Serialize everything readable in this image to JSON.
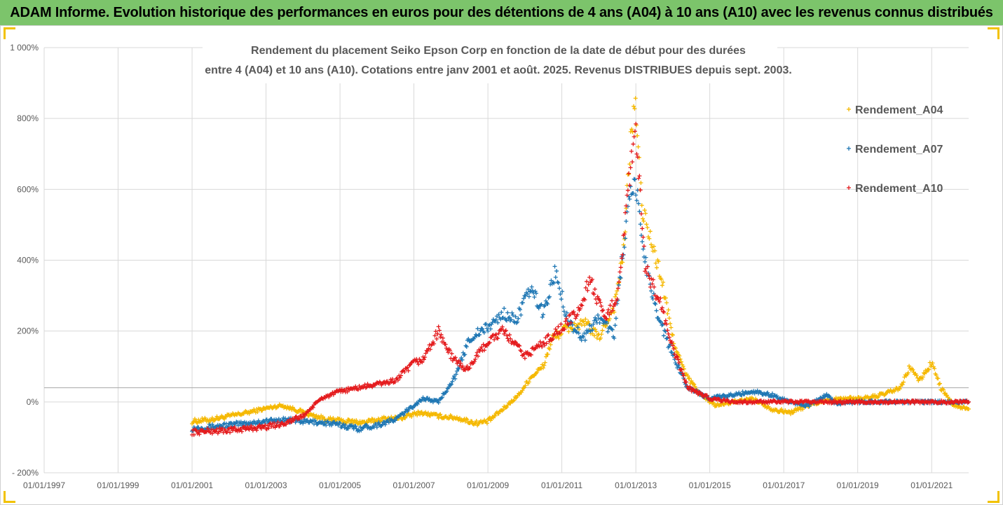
{
  "banner": {
    "title": "ADAM Informe. Evolution historique des performances en euros pour des détentions de 4 ans (A04) à 10 ans (A10) avec les revenus connus distribués"
  },
  "colors": {
    "banner_bg": "#7cc46b",
    "corner_accent": "#f2c200",
    "A04": "#f5b800",
    "A07": "#1f77b4",
    "A10": "#e41a1c"
  },
  "chart_data": {
    "type": "scatter",
    "title_lines": [
      "Rendement du placement Seiko Epson Corp en fonction de la date de début pour des durées",
      "entre 4 (A04) et 10 ans (A10). Cotations entre janv 2001 et août. 2025. Revenus DISTRIBUES depuis sept. 2003."
    ],
    "xlabel": "",
    "ylabel": "",
    "x_tick_labels": [
      "01/01/1997",
      "01/01/1999",
      "01/01/2001",
      "01/01/2003",
      "01/01/2005",
      "01/01/2007",
      "01/01/2009",
      "01/01/2011",
      "01/01/2013",
      "01/01/2015",
      "01/01/2017",
      "01/01/2019",
      "01/01/2021"
    ],
    "x_range": [
      "1997-01-01",
      "2022-01-01"
    ],
    "y_tick_labels": [
      "- 200%",
      "0%",
      "200%",
      "400%",
      "600%",
      "800%",
      "1 000%"
    ],
    "y_range_percent": [
      -200,
      1000
    ],
    "reference_line_percent": 40,
    "grid": "on",
    "legend_position": "right",
    "marker": "plus",
    "series": [
      {
        "name": "Rendement_A04",
        "color_key": "A04",
        "points": [
          [
            "2001-01-01",
            -55
          ],
          [
            "2001-07-01",
            -50
          ],
          [
            "2002-01-01",
            -40
          ],
          [
            "2002-07-01",
            -30
          ],
          [
            "2003-01-01",
            -18
          ],
          [
            "2003-06-01",
            -10
          ],
          [
            "2003-10-01",
            -20
          ],
          [
            "2004-03-01",
            -35
          ],
          [
            "2004-09-01",
            -50
          ],
          [
            "2005-03-01",
            -55
          ],
          [
            "2005-09-01",
            -58
          ],
          [
            "2006-03-01",
            -48
          ],
          [
            "2006-09-01",
            -45
          ],
          [
            "2007-03-01",
            -30
          ],
          [
            "2007-09-01",
            -40
          ],
          [
            "2008-03-01",
            -45
          ],
          [
            "2008-09-01",
            -60
          ],
          [
            "2009-01-01",
            -55
          ],
          [
            "2009-06-01",
            -20
          ],
          [
            "2009-11-01",
            20
          ],
          [
            "2010-03-01",
            70
          ],
          [
            "2010-07-01",
            100
          ],
          [
            "2010-10-01",
            180
          ],
          [
            "2011-03-01",
            210
          ],
          [
            "2011-09-01",
            220
          ],
          [
            "2012-01-01",
            180
          ],
          [
            "2012-06-01",
            270
          ],
          [
            "2012-09-01",
            420
          ],
          [
            "2012-11-01",
            700
          ],
          [
            "2012-12-20",
            860
          ],
          [
            "2013-03-01",
            550
          ],
          [
            "2013-06-01",
            450
          ],
          [
            "2013-09-01",
            360
          ],
          [
            "2014-01-01",
            180
          ],
          [
            "2014-05-01",
            80
          ],
          [
            "2014-10-01",
            20
          ],
          [
            "2015-03-01",
            -10
          ],
          [
            "2015-09-01",
            0
          ],
          [
            "2016-03-01",
            10
          ],
          [
            "2016-09-01",
            -20
          ],
          [
            "2017-03-01",
            -30
          ],
          [
            "2017-09-01",
            -10
          ],
          [
            "2018-03-01",
            5
          ],
          [
            "2018-09-01",
            10
          ],
          [
            "2019-03-01",
            10
          ],
          [
            "2019-09-01",
            20
          ],
          [
            "2020-03-01",
            40
          ],
          [
            "2020-06-01",
            100
          ],
          [
            "2020-09-01",
            60
          ],
          [
            "2021-01-01",
            110
          ],
          [
            "2021-04-01",
            40
          ],
          [
            "2021-08-01",
            -10
          ],
          [
            "2022-01-01",
            -20
          ]
        ]
      },
      {
        "name": "Rendement_A07",
        "color_key": "A07",
        "points": [
          [
            "2001-01-01",
            -75
          ],
          [
            "2001-07-01",
            -70
          ],
          [
            "2002-01-01",
            -65
          ],
          [
            "2002-07-01",
            -60
          ],
          [
            "2003-01-01",
            -55
          ],
          [
            "2003-07-01",
            -50
          ],
          [
            "2004-01-01",
            -55
          ],
          [
            "2004-07-01",
            -58
          ],
          [
            "2005-01-01",
            -65
          ],
          [
            "2005-07-01",
            -75
          ],
          [
            "2006-01-01",
            -65
          ],
          [
            "2006-07-01",
            -50
          ],
          [
            "2007-01-01",
            -10
          ],
          [
            "2007-04-01",
            10
          ],
          [
            "2007-09-01",
            0
          ],
          [
            "2008-03-01",
            80
          ],
          [
            "2008-07-01",
            180
          ],
          [
            "2009-01-01",
            210
          ],
          [
            "2009-06-01",
            250
          ],
          [
            "2009-10-01",
            230
          ],
          [
            "2010-03-01",
            320
          ],
          [
            "2010-07-01",
            250
          ],
          [
            "2010-11-01",
            370
          ],
          [
            "2011-03-01",
            230
          ],
          [
            "2011-08-01",
            180
          ],
          [
            "2012-01-01",
            240
          ],
          [
            "2012-06-01",
            190
          ],
          [
            "2012-09-01",
            440
          ],
          [
            "2012-11-01",
            570
          ],
          [
            "2013-01-01",
            610
          ],
          [
            "2013-04-01",
            400
          ],
          [
            "2013-08-01",
            250
          ],
          [
            "2014-01-01",
            130
          ],
          [
            "2014-06-01",
            40
          ],
          [
            "2015-01-01",
            10
          ],
          [
            "2015-09-01",
            20
          ],
          [
            "2016-03-01",
            30
          ],
          [
            "2016-09-01",
            20
          ],
          [
            "2017-03-01",
            0
          ],
          [
            "2017-09-01",
            -10
          ],
          [
            "2018-03-01",
            20
          ],
          [
            "2018-06-01",
            -5
          ],
          [
            "2019-01-01",
            0
          ],
          [
            "2020-01-01",
            0
          ],
          [
            "2021-01-01",
            0
          ],
          [
            "2022-01-01",
            0
          ]
        ]
      },
      {
        "name": "Rendement_A10",
        "color_key": "A10",
        "points": [
          [
            "2001-01-01",
            -85
          ],
          [
            "2001-07-01",
            -82
          ],
          [
            "2002-01-01",
            -80
          ],
          [
            "2002-07-01",
            -75
          ],
          [
            "2003-01-01",
            -70
          ],
          [
            "2003-07-01",
            -60
          ],
          [
            "2004-01-01",
            -40
          ],
          [
            "2004-07-01",
            10
          ],
          [
            "2005-01-01",
            30
          ],
          [
            "2005-07-01",
            40
          ],
          [
            "2006-01-01",
            50
          ],
          [
            "2006-07-01",
            60
          ],
          [
            "2007-01-01",
            110
          ],
          [
            "2007-04-01",
            120
          ],
          [
            "2007-09-01",
            200
          ],
          [
            "2008-01-01",
            130
          ],
          [
            "2008-06-01",
            90
          ],
          [
            "2009-01-01",
            170
          ],
          [
            "2009-06-01",
            200
          ],
          [
            "2010-01-01",
            130
          ],
          [
            "2010-06-01",
            160
          ],
          [
            "2011-01-01",
            210
          ],
          [
            "2011-07-01",
            260
          ],
          [
            "2011-10-01",
            350
          ],
          [
            "2012-03-01",
            230
          ],
          [
            "2012-07-01",
            300
          ],
          [
            "2012-09-01",
            460
          ],
          [
            "2012-11-01",
            640
          ],
          [
            "2013-01-01",
            760
          ],
          [
            "2013-04-01",
            380
          ],
          [
            "2013-09-01",
            280
          ],
          [
            "2014-01-01",
            150
          ],
          [
            "2014-06-01",
            40
          ],
          [
            "2015-01-01",
            10
          ],
          [
            "2015-09-01",
            0
          ],
          [
            "2016-06-01",
            0
          ],
          [
            "2017-06-01",
            0
          ],
          [
            "2018-06-01",
            0
          ],
          [
            "2019-06-01",
            0
          ],
          [
            "2020-06-01",
            0
          ],
          [
            "2021-06-01",
            0
          ],
          [
            "2022-01-01",
            0
          ]
        ]
      }
    ]
  }
}
